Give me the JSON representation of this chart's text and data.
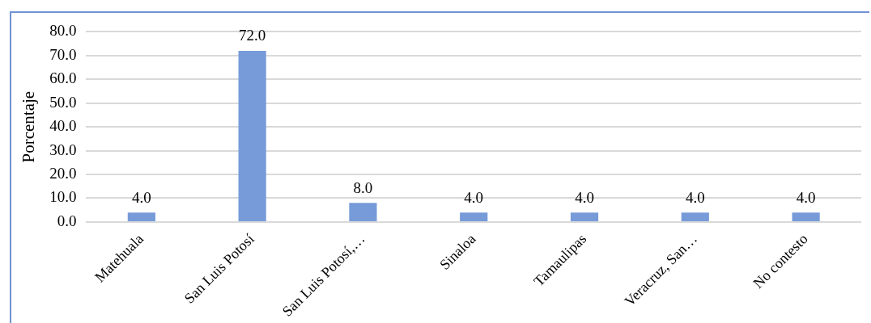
{
  "chart_data": {
    "type": "bar",
    "ylabel": "Porcentaje",
    "categories": [
      "Matehuala",
      "San Luis Potosí",
      "San Luis Potosí,…",
      "Sinaloa",
      "Tamaulipas",
      "Veracruz, San…",
      "No contesto"
    ],
    "values": [
      4.0,
      72.0,
      8.0,
      4.0,
      4.0,
      4.0,
      4.0
    ],
    "color": "#779bd9",
    "ylim": [
      0,
      80
    ],
    "yticks": [
      {
        "value": 0,
        "label": "0.0"
      },
      {
        "value": 10,
        "label": "10.0"
      },
      {
        "value": 20,
        "label": "20.0"
      },
      {
        "value": 30,
        "label": "30.0"
      },
      {
        "value": 40,
        "label": "40.0"
      },
      {
        "value": 50,
        "label": "50.0"
      },
      {
        "value": 60,
        "label": "60.0"
      },
      {
        "value": 70,
        "label": "70.0"
      },
      {
        "value": 80,
        "label": "80.0"
      }
    ],
    "value_labels": [
      "4.0",
      "72.0",
      "8.0",
      "4.0",
      "4.0",
      "4.0",
      "4.0"
    ],
    "grid": "y"
  }
}
